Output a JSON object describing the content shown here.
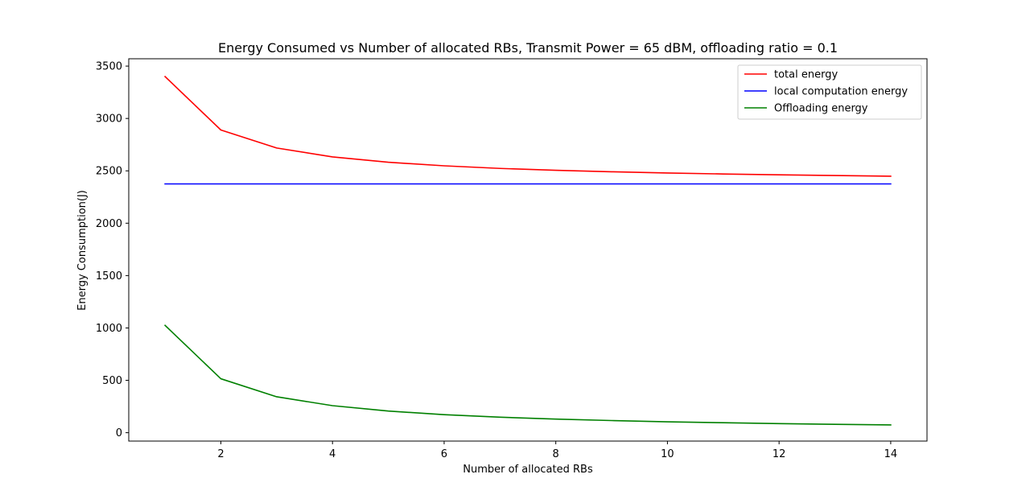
{
  "chart_data": {
    "type": "line",
    "title": "Energy Consumed vs Number of allocated RBs, Transmit Power = 65 dBM, offloading ratio = 0.1",
    "xlabel": "Number of allocated RBs",
    "ylabel": "Energy Consumption(J)",
    "xlim": [
      0.35,
      14.65
    ],
    "ylim": [
      -80,
      3570
    ],
    "x_ticks": [
      2,
      4,
      6,
      8,
      10,
      12,
      14
    ],
    "y_ticks": [
      0,
      500,
      1000,
      1500,
      2000,
      2500,
      3000,
      3500
    ],
    "grid": false,
    "legend_position": "top-right",
    "x": [
      1,
      2,
      3,
      4,
      5,
      6,
      7,
      8,
      9,
      10,
      11,
      12,
      13,
      14
    ],
    "series": [
      {
        "name": "total energy",
        "color": "#ff0000",
        "values": [
          3400,
          2890,
          2718,
          2633,
          2582,
          2548,
          2523,
          2505,
          2491,
          2479,
          2470,
          2462,
          2455,
          2449
        ]
      },
      {
        "name": "local computation energy",
        "color": "#0000ff",
        "values": [
          2375,
          2375,
          2375,
          2375,
          2375,
          2375,
          2375,
          2375,
          2375,
          2375,
          2375,
          2375,
          2375,
          2375
        ]
      },
      {
        "name": "Offloading energy",
        "color": "#008000",
        "values": [
          1025,
          515,
          343,
          258,
          207,
          172,
          148,
          130,
          116,
          104,
          95,
          87,
          80,
          74
        ]
      }
    ]
  }
}
